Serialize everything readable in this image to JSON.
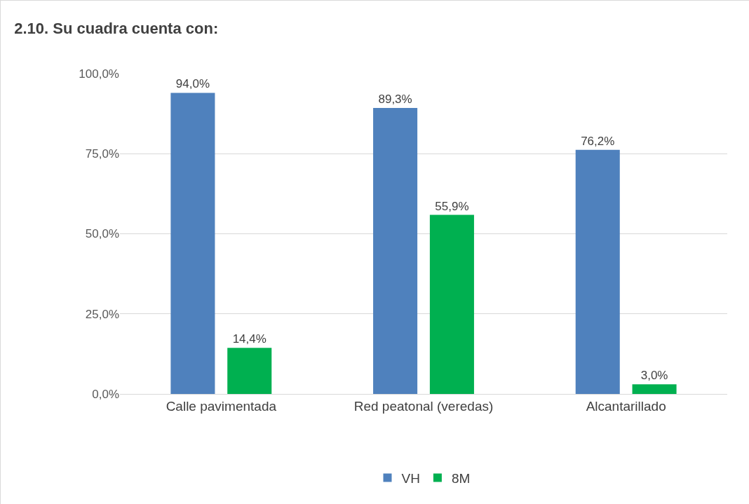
{
  "chart_data": {
    "type": "bar",
    "title": "2.10. Su cuadra cuenta con:",
    "categories": [
      "Calle pavimentada",
      "Red peatonal (veredas)",
      "Alcantarillado"
    ],
    "series": [
      {
        "name": "VH",
        "color": "#4f81bd",
        "values": [
          94.0,
          89.3,
          76.2
        ],
        "value_labels": [
          "94,0%",
          "89,3%",
          "76,2%"
        ]
      },
      {
        "name": "8M",
        "color": "#00b050",
        "values": [
          14.4,
          55.9,
          3.0
        ],
        "value_labels": [
          "14,4%",
          "55,9%",
          "3,0%"
        ]
      }
    ],
    "ylim": [
      0,
      100
    ],
    "yticks": [
      {
        "value": 0,
        "label": "0,0%"
      },
      {
        "value": 25,
        "label": "25,0%"
      },
      {
        "value": 50,
        "label": "50,0%"
      },
      {
        "value": 75,
        "label": "75,0%"
      },
      {
        "value": 100,
        "label": "100,0%"
      }
    ],
    "grid": "y",
    "legend": "bottom"
  }
}
